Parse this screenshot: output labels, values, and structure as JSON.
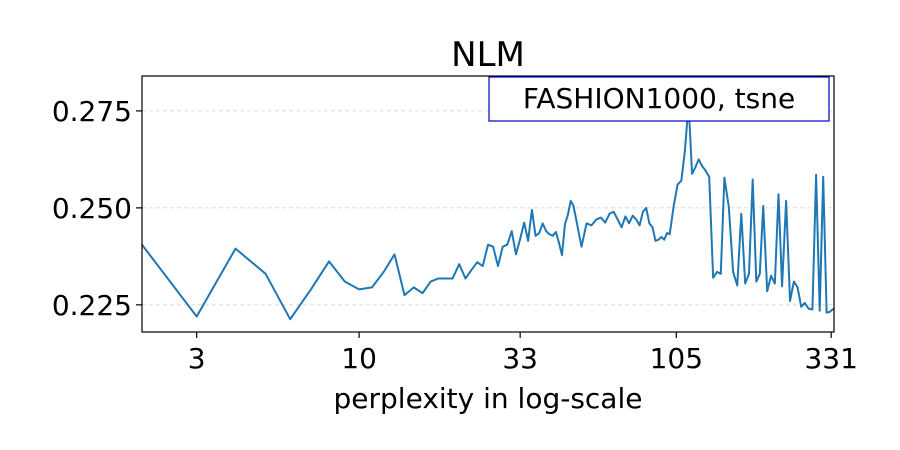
{
  "chart_data": {
    "type": "line",
    "title": "NLM",
    "xlabel": "perplexity in log-scale",
    "ylabel": "",
    "xscale": "log",
    "annotation": "FASHION1000, tsne",
    "legend_placement": "top-right",
    "grid": "horizontal-dashed",
    "colors": {
      "line": "#1f77b4",
      "annotation_border": "#0000cc"
    },
    "xlim": [
      2,
      338
    ],
    "ylim": [
      0.218,
      0.284
    ],
    "x_ticks": [
      {
        "value": 3,
        "label": "3"
      },
      {
        "value": 10,
        "label": "10"
      },
      {
        "value": 33,
        "label": "33"
      },
      {
        "value": 105,
        "label": "105"
      },
      {
        "value": 331,
        "label": "331"
      }
    ],
    "y_ticks": [
      {
        "value": 0.225,
        "label": "0.225"
      },
      {
        "value": 0.25,
        "label": "0.250"
      },
      {
        "value": 0.275,
        "label": "0.275"
      }
    ],
    "series": [
      {
        "x": [
          2,
          3,
          4,
          5,
          6,
          7,
          8,
          9,
          10,
          11,
          12,
          13,
          14,
          15,
          16,
          17,
          18,
          19,
          20,
          21,
          22,
          23,
          24,
          25,
          26,
          27,
          28,
          29,
          30,
          31,
          32,
          33,
          34,
          35,
          36,
          37,
          38,
          39,
          40,
          41,
          42,
          43,
          44,
          45,
          46,
          47,
          48,
          49,
          50,
          52,
          54,
          56,
          58,
          60,
          62,
          64,
          66,
          68,
          70,
          72,
          74,
          76,
          78,
          80,
          82,
          84,
          86,
          88,
          90,
          92,
          94,
          96,
          98,
          100,
          103,
          106,
          109,
          112,
          115,
          118,
          121,
          124,
          127,
          130,
          134,
          138,
          142,
          146,
          150,
          155,
          160,
          165,
          170,
          175,
          180,
          185,
          190,
          195,
          200,
          206,
          212,
          218,
          224,
          230,
          237,
          244,
          251,
          258,
          265,
          272,
          280,
          288,
          296,
          304,
          312,
          320,
          328,
          334,
          338
        ],
        "y": [
          0.2405,
          0.222,
          0.2395,
          0.233,
          0.2213,
          0.229,
          0.2362,
          0.231,
          0.229,
          0.2295,
          0.2335,
          0.238,
          0.2275,
          0.2295,
          0.228,
          0.231,
          0.2318,
          0.2318,
          0.2318,
          0.2355,
          0.2318,
          0.234,
          0.236,
          0.235,
          0.2405,
          0.24,
          0.235,
          0.24,
          0.2405,
          0.244,
          0.238,
          0.242,
          0.2462,
          0.2415,
          0.2495,
          0.2428,
          0.2435,
          0.246,
          0.244,
          0.2432,
          0.2428,
          0.2438,
          0.241,
          0.2378,
          0.2458,
          0.2482,
          0.2518,
          0.2505,
          0.247,
          0.24,
          0.246,
          0.2455,
          0.247,
          0.2475,
          0.2462,
          0.2485,
          0.249,
          0.247,
          0.245,
          0.2478,
          0.246,
          0.248,
          0.247,
          0.2455,
          0.249,
          0.25,
          0.246,
          0.245,
          0.2415,
          0.2418,
          0.2425,
          0.2418,
          0.2435,
          0.2432,
          0.2505,
          0.256,
          0.257,
          0.265,
          0.277,
          0.2588,
          0.2605,
          0.2625,
          0.2608,
          0.2598,
          0.258,
          0.232,
          0.2335,
          0.233,
          0.2578,
          0.2502,
          0.2335,
          0.23,
          0.2485,
          0.2305,
          0.233,
          0.2573,
          0.231,
          0.233,
          0.2505,
          0.2285,
          0.2325,
          0.2305,
          0.2535,
          0.2298,
          0.2518,
          0.226,
          0.231,
          0.2295,
          0.2245,
          0.2255,
          0.224,
          0.2238,
          0.2585,
          0.2235,
          0.258,
          0.223,
          0.2232,
          0.2238,
          0.224
        ]
      }
    ]
  }
}
